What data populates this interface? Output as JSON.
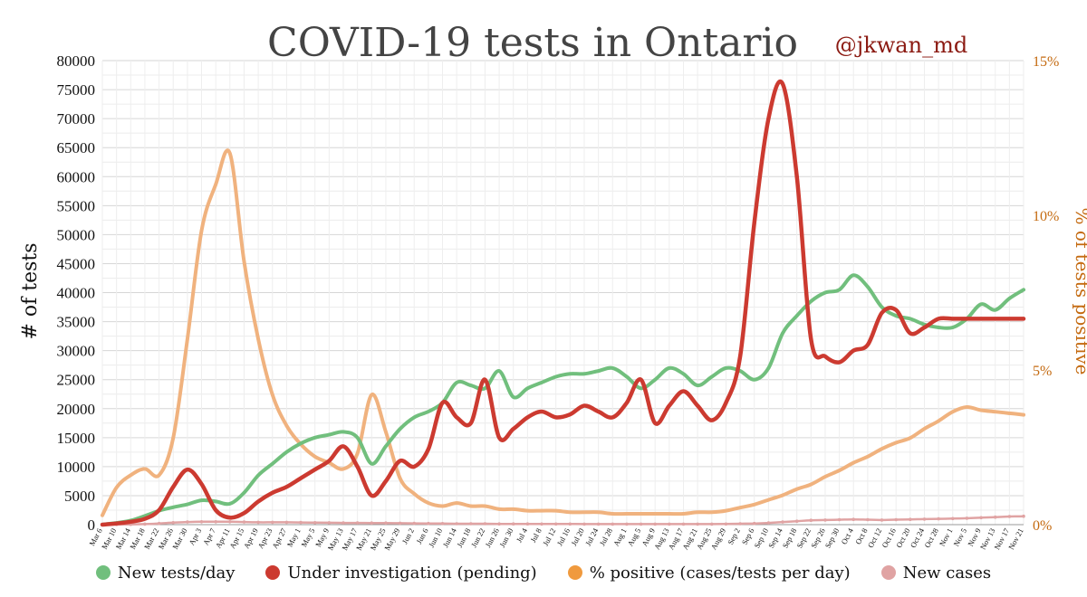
{
  "chart_data": {
    "type": "line",
    "title": "COVID-19 tests in Ontario",
    "credit": "@jkwan_md",
    "ylabel": "# of tests",
    "y2label": "% of tests positive",
    "ylim": [
      0,
      80000
    ],
    "y2lim": [
      0,
      15
    ],
    "yticks": [
      "0",
      "5000",
      "10000",
      "15000",
      "20000",
      "25000",
      "30000",
      "35000",
      "40000",
      "45000",
      "50000",
      "55000",
      "60000",
      "65000",
      "70000",
      "75000",
      "80000"
    ],
    "y2ticks": [
      "0%",
      "5%",
      "10%",
      "15%"
    ],
    "x": [
      "Mar 6",
      "Mar 10",
      "Mar 14",
      "Mar 18",
      "Mar 22",
      "Mar 26",
      "Mar 30",
      "Apr 3",
      "Apr 7",
      "Apr 11",
      "Apr 15",
      "Apr 19",
      "Apr 23",
      "Apr 27",
      "May 1",
      "May 5",
      "May 9",
      "May 13",
      "May 17",
      "May 21",
      "May 25",
      "May 29",
      "Jun 2",
      "Jun 6",
      "Jun 10",
      "Jun 14",
      "Jun 18",
      "Jun 22",
      "Jun 26",
      "Jun 30",
      "Jul 4",
      "Jul 8",
      "Jul 12",
      "Jul 16",
      "Jul 20",
      "Jul 24",
      "Jul 28",
      "Aug 1",
      "Aug 5",
      "Aug 9",
      "Aug 13",
      "Aug 17",
      "Aug 21",
      "Aug 25",
      "Aug 29",
      "Sep 2",
      "Sep 6",
      "Sep 10",
      "Sep 14",
      "Sep 18",
      "Sep 22",
      "Sep 26",
      "Sep 30",
      "Oct 4",
      "Oct 8",
      "Oct 12",
      "Oct 16",
      "Oct 20",
      "Oct 24",
      "Oct 28",
      "Nov 1",
      "Nov 5",
      "Nov 9",
      "Nov 13",
      "Nov 17",
      "Nov 21"
    ],
    "grid": true,
    "legend_position": "bottom",
    "series": [
      {
        "name": "New tests/day",
        "color": "#71bf7d",
        "axis": "left",
        "values": [
          0,
          300,
          700,
          1500,
          2400,
          3000,
          3500,
          4200,
          4000,
          3600,
          5500,
          8500,
          10500,
          12500,
          14000,
          15000,
          15500,
          16000,
          15000,
          10500,
          13500,
          16500,
          18500,
          19500,
          21000,
          24500,
          24000,
          23500,
          26500,
          22000,
          23500,
          24500,
          25500,
          26000,
          26000,
          26500,
          27000,
          25500,
          23500,
          25000,
          27000,
          26000,
          24000,
          25500,
          27000,
          26500,
          25000,
          27000,
          33000,
          36000,
          38500,
          40000,
          40500,
          43000,
          41000,
          37500,
          36000,
          35500,
          34500,
          34000,
          34000,
          35500,
          38000,
          37000,
          39000,
          40500
        ]
      },
      {
        "name": "Under investigation (pending)",
        "color": "#cc3a30",
        "axis": "left",
        "values": [
          0,
          200,
          500,
          1000,
          2500,
          6500,
          9500,
          7000,
          2500,
          1200,
          2000,
          4000,
          5500,
          6500,
          8000,
          9500,
          11000,
          13500,
          10000,
          5000,
          7500,
          11000,
          10000,
          13000,
          21000,
          18500,
          17500,
          25000,
          15000,
          16500,
          18500,
          19500,
          18500,
          19000,
          20500,
          19500,
          18500,
          21000,
          25000,
          17500,
          20500,
          23000,
          20500,
          18000,
          21000,
          29000,
          52000,
          70000,
          76000,
          60000,
          32000,
          29000,
          28000,
          30000,
          31000,
          36500,
          37000,
          33000,
          34000,
          35500,
          35500,
          35500,
          35500,
          35500,
          35500,
          35500
        ]
      },
      {
        "name": "% positive (cases/tests per day)",
        "color": "#f0b27e",
        "axis": "right",
        "values": [
          0.3,
          1.2,
          1.6,
          1.8,
          1.6,
          2.8,
          6.0,
          9.5,
          11.0,
          12.0,
          8.5,
          6.0,
          4.2,
          3.2,
          2.6,
          2.2,
          2.0,
          1.8,
          2.3,
          4.2,
          3.0,
          1.5,
          1.0,
          0.7,
          0.6,
          0.7,
          0.6,
          0.6,
          0.5,
          0.5,
          0.45,
          0.45,
          0.45,
          0.4,
          0.4,
          0.4,
          0.35,
          0.35,
          0.35,
          0.35,
          0.35,
          0.35,
          0.4,
          0.4,
          0.45,
          0.55,
          0.65,
          0.8,
          0.95,
          1.15,
          1.3,
          1.55,
          1.75,
          2.0,
          2.2,
          2.45,
          2.65,
          2.8,
          3.1,
          3.35,
          3.65,
          3.8,
          3.7,
          3.65,
          3.6,
          3.55
        ]
      },
      {
        "name": "New cases",
        "color": "#e0a3a3",
        "axis": "left",
        "values": [
          0,
          20,
          50,
          100,
          200,
          350,
          450,
          500,
          500,
          500,
          450,
          400,
          400,
          400,
          380,
          350,
          330,
          300,
          300,
          280,
          280,
          250,
          220,
          200,
          180,
          150,
          150,
          150,
          130,
          120,
          120,
          110,
          110,
          110,
          100,
          100,
          100,
          100,
          100,
          100,
          100,
          100,
          100,
          100,
          110,
          150,
          200,
          300,
          450,
          600,
          750,
          800,
          850,
          900,
          850,
          800,
          850,
          900,
          950,
          1000,
          1050,
          1100,
          1200,
          1300,
          1400,
          1450
        ]
      }
    ]
  }
}
